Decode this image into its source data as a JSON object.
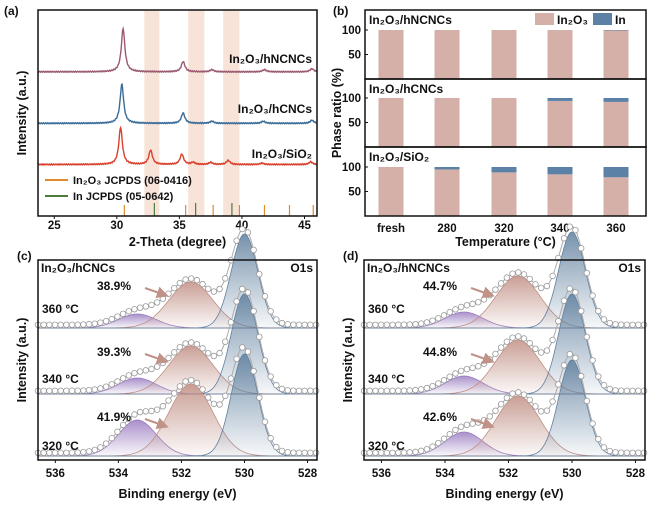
{
  "chart_data": [
    {
      "panel": "(a)",
      "type": "line",
      "xlabel": "2-Theta (degree)",
      "ylabel": "Intensity (a.u.)",
      "xlim": [
        23.7,
        46
      ],
      "xticks": [
        25,
        30,
        35,
        40,
        45
      ],
      "highlight_bands": [
        [
          32.2,
          33.4
        ],
        [
          35.7,
          37.0
        ],
        [
          38.5,
          39.8
        ]
      ],
      "band_color": "#f6dccf",
      "series": [
        {
          "name": "In₂O₃/hNCNCs",
          "color": "#9c5a72",
          "offset": 70,
          "peaks": [
            [
              30.5,
              21
            ],
            [
              35.3,
              5
            ],
            [
              37.6,
              1
            ],
            [
              41.8,
              1
            ],
            [
              45.6,
              1.5
            ]
          ]
        },
        {
          "name": "In₂O₃/hCNCs",
          "color": "#3a6c98",
          "offset": 45,
          "peaks": [
            [
              30.4,
              19
            ],
            [
              35.3,
              5
            ],
            [
              37.6,
              1
            ],
            [
              41.7,
              1
            ],
            [
              45.6,
              1.5
            ]
          ]
        },
        {
          "name": "In₂O₃/SiO₂",
          "color": "#d8412d",
          "offset": 25,
          "peaks": [
            [
              30.3,
              18
            ],
            [
              32.7,
              7
            ],
            [
              35.2,
              5
            ],
            [
              36.1,
              1
            ],
            [
              37.5,
              1
            ],
            [
              38.9,
              2
            ],
            [
              41.6,
              0.7
            ],
            [
              45.5,
              1.3
            ]
          ]
        }
      ],
      "references": [
        {
          "name": "In₂O₃ JCPDS (06-0416)",
          "color": "#e08a2c",
          "positions": [
            30.6,
            35.5,
            37.7,
            39.8,
            41.8,
            43.8,
            45.7
          ]
        },
        {
          "name": "In JCPDS (05-0642)",
          "color": "#4a7d3c",
          "positions": [
            33.0,
            36.3,
            39.2
          ]
        }
      ]
    },
    {
      "panel": "(b)",
      "type": "bar",
      "stacked": true,
      "xlabel": "Temperature (°C)",
      "ylabel": "Phase ratio (%)",
      "categories": [
        "fresh",
        "280",
        "320",
        "340",
        "360"
      ],
      "yticks": [
        50,
        100
      ],
      "legend": [
        {
          "name": "In₂O₃",
          "color": "#d4b0a8"
        },
        {
          "name": "In",
          "color": "#5b82a6"
        }
      ],
      "legend_position": "top-right",
      "subplots": [
        {
          "title": "In₂O₃/hNCNCs",
          "In2O3": [
            100,
            100,
            100,
            100,
            99
          ],
          "In": [
            0,
            0,
            0,
            0,
            1
          ]
        },
        {
          "title": "In₂O₃/hCNCs",
          "In2O3": [
            100,
            100,
            100,
            94,
            92
          ],
          "In": [
            0,
            0,
            0,
            6,
            8
          ]
        },
        {
          "title": "In₂O₃/SiO₂",
          "In2O3": [
            100,
            95,
            89,
            85,
            79
          ],
          "In": [
            0,
            5,
            11,
            15,
            21
          ]
        }
      ]
    },
    {
      "panel": "(c)",
      "type": "line",
      "title": "In₂O₃/hCNCs",
      "annotation": "O1s",
      "xlabel": "Binding energy (eV)",
      "ylabel": "Intensity (a.u.)",
      "xlim": [
        536.55,
        527.7
      ],
      "xticks": [
        536,
        534,
        532,
        530,
        528
      ],
      "spectra": [
        {
          "label": "360 °C",
          "percent": "38.9%",
          "offset": 66,
          "amps": [
            7,
            23,
            47
          ]
        },
        {
          "label": "340 °C",
          "percent": "39.3%",
          "offset": 33,
          "amps": [
            8,
            24,
            50
          ]
        },
        {
          "label": "320 °C",
          "percent": "41.9%",
          "offset": 2,
          "amps": [
            18,
            36,
            51
          ]
        }
      ]
    },
    {
      "panel": "(d)",
      "type": "line",
      "title": "In₂O₃/hNCNCs",
      "annotation": "O1s",
      "xlabel": "Binding energy (eV)",
      "ylabel": "Intensity (a.u.)",
      "xlim": [
        536.55,
        527.7
      ],
      "xticks": [
        536,
        534,
        532,
        530,
        528
      ],
      "spectra": [
        {
          "label": "360 °C",
          "percent": "44.7%",
          "offset": 66,
          "amps": [
            8,
            26,
            48
          ]
        },
        {
          "label": "340 °C",
          "percent": "44.8%",
          "offset": 33,
          "amps": [
            9,
            27,
            50
          ]
        },
        {
          "label": "320 °C",
          "percent": "42.6%",
          "offset": 2,
          "amps": [
            12,
            30,
            48
          ]
        }
      ]
    }
  ],
  "xps_components": {
    "centers": [
      533.4,
      531.7,
      530.0
    ],
    "sigmas": [
      0.6,
      0.7,
      0.42
    ],
    "colors": [
      "#9a7cc0",
      "#c08f84",
      "#5f7f9e"
    ]
  }
}
